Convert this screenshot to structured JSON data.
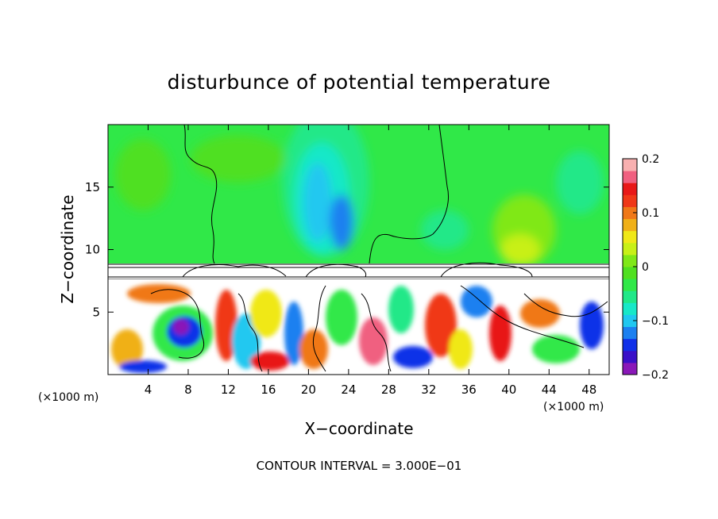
{
  "chart_data": {
    "type": "heatmap",
    "title": "disturbunce of potential temperature",
    "xlabel": "X−coordinate",
    "ylabel": "Z−coordinate",
    "x_unit": "(×1000 m)",
    "z_unit": "(×1000 m)",
    "footer": "CONTOUR INTERVAL = 3.000E−01",
    "xlim": [
      0,
      50
    ],
    "ylim": [
      0,
      20
    ],
    "x_ticks": [
      4,
      8,
      12,
      16,
      20,
      24,
      28,
      32,
      36,
      40,
      44,
      48
    ],
    "y_ticks": [
      5,
      10,
      15
    ],
    "colorbar": {
      "min": -0.2,
      "max": 0.2,
      "ticks": [
        {
          "value": 0.2,
          "label": "0.2"
        },
        {
          "value": 0.1,
          "label": "0.1"
        },
        {
          "value": 0,
          "label": "0"
        },
        {
          "value": -0.1,
          "label": "−0.1"
        },
        {
          "value": -0.2,
          "label": "−0.2"
        }
      ],
      "colors": [
        "#8a18b8",
        "#3a10c8",
        "#1030e8",
        "#1c80f0",
        "#20c8f0",
        "#18e8c8",
        "#20e888",
        "#30e848",
        "#50e020",
        "#80e818",
        "#c8f018",
        "#f0e818",
        "#f0b018",
        "#f07818",
        "#f03818",
        "#e81818",
        "#f06080",
        "#f8b0b0"
      ]
    }
  }
}
